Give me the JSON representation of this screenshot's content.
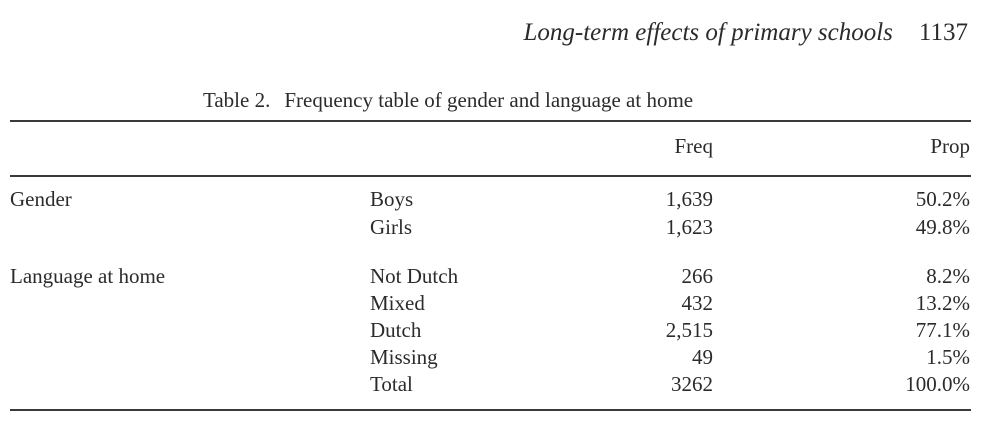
{
  "running_head": {
    "title": "Long-term effects of primary schools",
    "page": "1137"
  },
  "caption": {
    "number": "Table 2.",
    "text": "Frequency table of gender and language at home"
  },
  "table": {
    "headers": {
      "group": "",
      "category": "",
      "freq": "Freq",
      "prop": "Prop"
    },
    "rows": [
      {
        "group": "Gender",
        "category": "Boys",
        "freq": "1,639",
        "prop": "50.2%"
      },
      {
        "group": "",
        "category": "Girls",
        "freq": "1,623",
        "prop": "49.8%"
      },
      {
        "group": "Language at home",
        "category": "Not Dutch",
        "freq": "266",
        "prop": "8.2%"
      },
      {
        "group": "",
        "category": "Mixed",
        "freq": "432",
        "prop": "13.2%"
      },
      {
        "group": "",
        "category": "Dutch",
        "freq": "2,515",
        "prop": "77.1%"
      },
      {
        "group": "",
        "category": "Missing",
        "freq": "49",
        "prop": "1.5%"
      },
      {
        "group": "",
        "category": "Total",
        "freq": "3262",
        "prop": "100.0%"
      }
    ]
  }
}
